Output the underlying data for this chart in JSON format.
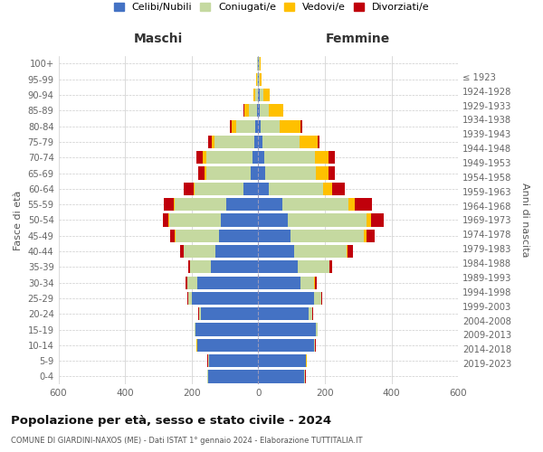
{
  "age_groups": [
    "0-4",
    "5-9",
    "10-14",
    "15-19",
    "20-24",
    "25-29",
    "30-34",
    "35-39",
    "40-44",
    "45-49",
    "50-54",
    "55-59",
    "60-64",
    "65-69",
    "70-74",
    "75-79",
    "80-84",
    "85-89",
    "90-94",
    "95-99",
    "100+"
  ],
  "birth_years": [
    "2019-2023",
    "2014-2018",
    "2009-2013",
    "2004-2008",
    "1999-2003",
    "1994-1998",
    "1989-1993",
    "1984-1988",
    "1979-1983",
    "1974-1978",
    "1969-1973",
    "1964-1968",
    "1959-1963",
    "1954-1958",
    "1949-1953",
    "1944-1948",
    "1939-1943",
    "1934-1938",
    "1929-1933",
    "1924-1928",
    "≤ 1923"
  ],
  "male": {
    "celibi": [
      150,
      148,
      182,
      188,
      172,
      200,
      182,
      142,
      128,
      118,
      112,
      95,
      45,
      22,
      18,
      13,
      8,
      4,
      2,
      1,
      1
    ],
    "coniugati": [
      2,
      2,
      2,
      2,
      5,
      10,
      30,
      62,
      95,
      130,
      155,
      155,
      145,
      135,
      138,
      118,
      58,
      24,
      8,
      3,
      2
    ],
    "vedovi": [
      1,
      1,
      1,
      1,
      1,
      1,
      1,
      1,
      1,
      2,
      3,
      3,
      5,
      5,
      10,
      8,
      15,
      15,
      5,
      2,
      1
    ],
    "divorziati": [
      1,
      1,
      1,
      1,
      2,
      3,
      5,
      5,
      10,
      15,
      15,
      30,
      28,
      18,
      20,
      12,
      5,
      2,
      0,
      0,
      0
    ]
  },
  "female": {
    "nubili": [
      138,
      142,
      168,
      172,
      152,
      168,
      128,
      118,
      108,
      98,
      88,
      72,
      32,
      22,
      18,
      13,
      7,
      4,
      4,
      2,
      2
    ],
    "coniugate": [
      2,
      2,
      2,
      5,
      10,
      20,
      40,
      95,
      158,
      218,
      238,
      198,
      162,
      152,
      152,
      112,
      58,
      28,
      12,
      3,
      2
    ],
    "vedove": [
      1,
      1,
      1,
      1,
      1,
      1,
      2,
      2,
      3,
      8,
      12,
      20,
      28,
      38,
      42,
      52,
      62,
      42,
      18,
      5,
      2
    ],
    "divorziate": [
      1,
      1,
      1,
      1,
      2,
      3,
      5,
      8,
      15,
      25,
      38,
      52,
      38,
      18,
      18,
      8,
      5,
      2,
      0,
      0,
      0
    ]
  },
  "colors": {
    "celibi": "#4472c4",
    "coniugati": "#c5d9a0",
    "vedovi": "#ffc000",
    "divorziati": "#c0000b"
  },
  "title": "Popolazione per età, sesso e stato civile - 2024",
  "subtitle": "COMUNE DI GIARDINI-NAXOS (ME) - Dati ISTAT 1° gennaio 2024 - Elaborazione TUTTITALIA.IT",
  "xlabel_left": "Maschi",
  "xlabel_right": "Femmine",
  "ylabel_left": "Fasce di età",
  "ylabel_right": "Anni di nascita",
  "xlim": 600,
  "legend_labels": [
    "Celibi/Nubili",
    "Coniugati/e",
    "Vedovi/e",
    "Divorziati/e"
  ],
  "background_color": "#ffffff",
  "grid_color": "#cccccc"
}
